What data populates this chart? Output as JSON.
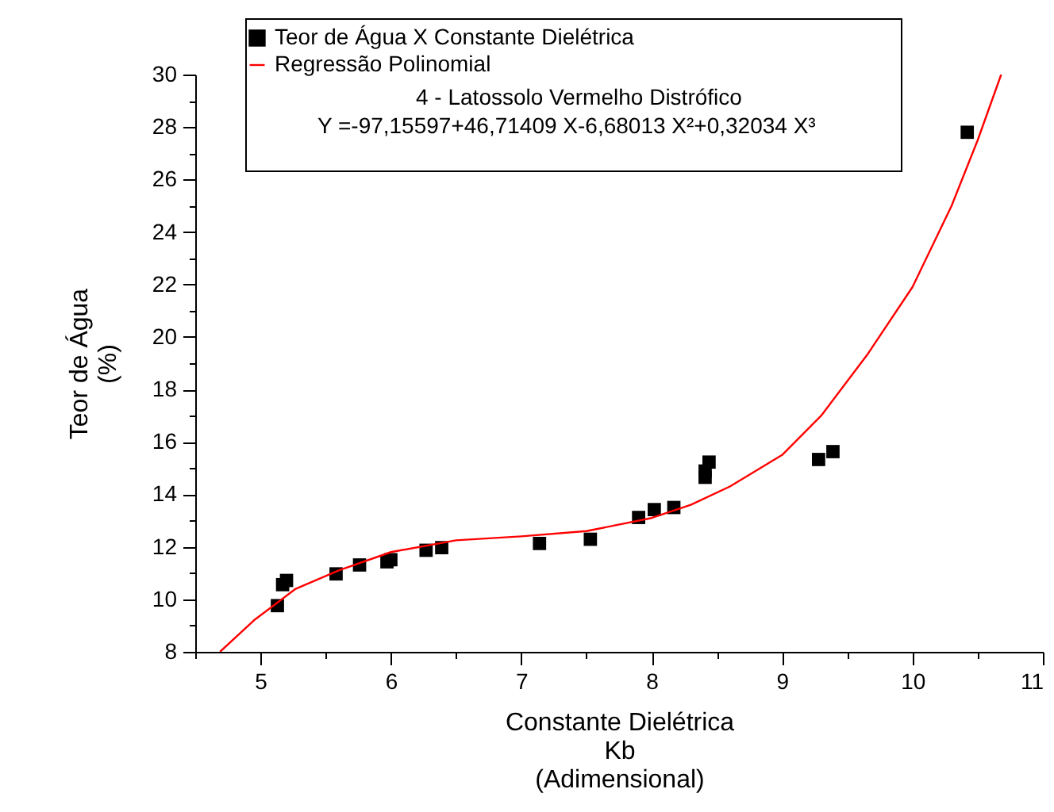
{
  "chart_data": {
    "type": "scatter",
    "xlabel": "Constante Dielétrica\nKb\n(Adimensional)",
    "ylabel": "Teor de Água\n(%)",
    "xlim": [
      4.5,
      11
    ],
    "ylim": [
      8,
      30
    ],
    "xticks": [
      {
        "value": 4.5,
        "label": null
      },
      5,
      {
        "value": 5.5,
        "label": null
      },
      6,
      {
        "value": 6.5,
        "label": null
      },
      7,
      {
        "value": 7.5,
        "label": null
      },
      8,
      {
        "value": 8.5,
        "label": null
      },
      9,
      {
        "value": 9.5,
        "label": null
      },
      10,
      {
        "value": 10.5,
        "label": null
      },
      11
    ],
    "yticks": [
      8,
      {
        "value": 9,
        "label": null
      },
      10,
      {
        "value": 11,
        "label": null
      },
      12,
      {
        "value": 13,
        "label": null
      },
      14,
      {
        "value": 15,
        "label": null
      },
      16,
      {
        "value": 17,
        "label": null
      },
      18,
      {
        "value": 19,
        "label": null
      },
      20,
      {
        "value": 21,
        "label": null
      },
      22,
      {
        "value": 23,
        "label": null
      },
      24,
      {
        "value": 25,
        "label": null
      },
      26,
      {
        "value": 27,
        "label": null
      },
      28,
      {
        "value": 29,
        "label": null
      },
      30
    ],
    "grid": false,
    "legend": "top left",
    "series": [
      {
        "name": "Teor de Água X Constante Dielétrica",
        "marker": "square",
        "color": "#000000",
        "x": [
          5.13,
          5.17,
          5.2,
          5.58,
          5.76,
          5.97,
          6.0,
          6.27,
          6.39,
          7.14,
          7.53,
          7.9,
          8.02,
          8.17,
          8.41,
          8.41,
          8.44,
          9.28,
          9.39,
          10.42
        ],
        "values": [
          9.76,
          10.56,
          10.72,
          10.97,
          11.31,
          11.43,
          11.51,
          11.87,
          11.97,
          12.13,
          12.29,
          13.12,
          13.42,
          13.5,
          14.65,
          14.89,
          15.23,
          15.33,
          15.63,
          27.8
        ]
      },
      {
        "name": "Regressão Polinomial",
        "type": "line",
        "marker": "none",
        "color": "#ff0000",
        "line_style": "solid",
        "x": [
          4.69,
          4.95,
          5.27,
          5.6,
          6.0,
          6.5,
          7.0,
          7.5,
          8.0,
          8.3,
          8.6,
          9.0,
          9.3,
          9.65,
          10.0,
          10.3,
          10.5,
          10.68
        ],
        "values": [
          8,
          9.2,
          10.4,
          11.1,
          11.8,
          12.25,
          12.4,
          12.6,
          13.1,
          13.6,
          14.3,
          15.5,
          17.0,
          19.3,
          21.9,
          25.0,
          27.5,
          30
        ]
      }
    ],
    "annotations": [
      "4 - Latossolo Vermelho Distrófico",
      "Y =-97,15597+46,71409 X-6,68013 X²+0,32034 X³"
    ]
  }
}
